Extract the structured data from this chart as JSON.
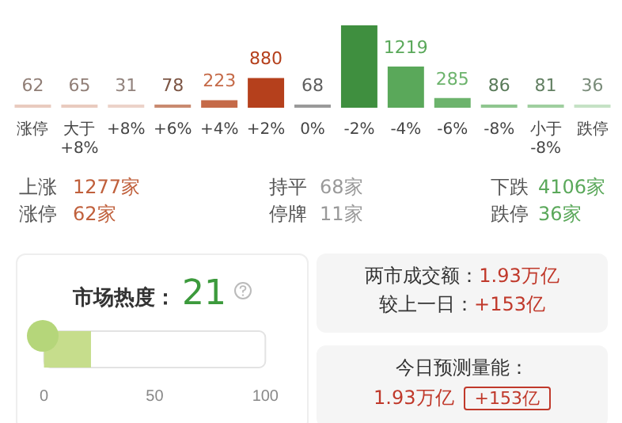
{
  "chart_data": [
    {
      "type": "bar",
      "categories": [
        "涨停",
        "大于 +8%",
        "+8%",
        "+6%",
        "+4%",
        "+2%",
        "0%",
        "-2%",
        "-4%",
        "-6%",
        "-8%",
        "小于 -8%",
        "跌停"
      ],
      "values": [
        62,
        65,
        31,
        78,
        223,
        880,
        68,
        2435,
        1219,
        285,
        86,
        81,
        36
      ],
      "value_labels": [
        "62",
        "65",
        "31",
        "78",
        "223",
        "880",
        "68",
        null,
        "1219",
        "285",
        "86",
        "81",
        "36"
      ],
      "colors": [
        "#e9cbbf",
        "#e9cbbf",
        "#ecd3c9",
        "#c98a70",
        "#c56a48",
        "#b5401c",
        "#9a9a9a",
        "#3f8f3f",
        "#5aa85a",
        "#6cb36c",
        "#8fc68f",
        "#9fcf9f",
        "#c5e2c5"
      ],
      "grid": false,
      "legend": false,
      "annotations": [
        "上涨",
        "1277家",
        "持平",
        "68家",
        "下跌",
        "4106家",
        "涨停",
        "62家",
        "停牌",
        "11家",
        "跌停",
        "36家"
      ]
    },
    {
      "type": "bar",
      "orientation": "horizontal",
      "title": "市场热度：",
      "categories": [
        null
      ],
      "values": [
        21
      ],
      "color": "#c6dd8c",
      "xlim": [
        0,
        100
      ],
      "xticks": [
        0,
        50,
        100
      ],
      "grid": false,
      "legend": false,
      "annotations": [
        "21"
      ]
    },
    {
      "type": "other",
      "annotations": [
        "两市成交额：",
        "1.93万亿",
        "较上一日：",
        "+153亿",
        "今日预测量能：",
        "1.93万亿",
        "+153亿"
      ]
    }
  ]
}
